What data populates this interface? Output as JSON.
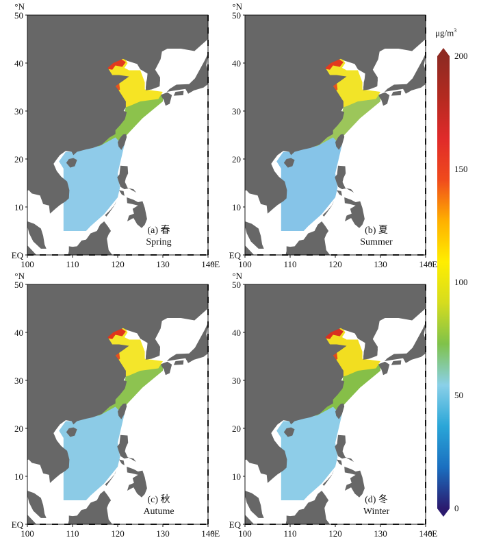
{
  "panels": [
    {
      "id": "a",
      "label": "(a) 春",
      "season": "Spring"
    },
    {
      "id": "b",
      "label": "(b) 夏",
      "season": "Summer"
    },
    {
      "id": "c",
      "label": "(c) 秋",
      "season": "Autume"
    },
    {
      "id": "d",
      "label": "(d) 冬",
      "season": "Winter"
    }
  ],
  "axes": {
    "lat_unit": "°N",
    "lon_unit": "°E",
    "lat_ticks": [
      "50",
      "40",
      "30",
      "20",
      "10",
      "EQ"
    ],
    "lon_ticks": [
      "100",
      "110",
      "120",
      "130",
      "140"
    ],
    "lat_range": [
      0,
      50
    ],
    "lon_range": [
      100,
      140
    ]
  },
  "colorbar": {
    "unit_base": "μg/m",
    "unit_sup": "3",
    "range": [
      0,
      200
    ],
    "ticks": [
      "200",
      "150",
      "100",
      "50",
      "0"
    ],
    "colors": [
      "#2b1a6e",
      "#1a6fc0",
      "#2aa6d8",
      "#8ad0e8",
      "#7fc24a",
      "#d6dc1e",
      "#ffee00",
      "#ffb000",
      "#f04a1c",
      "#e02a2a",
      "#b42a20",
      "#8e2a22"
    ]
  },
  "colors": {
    "land": "#676767",
    "ocean_blank": "#ffffff",
    "low": "#8fcbe9",
    "mid": "#8cc24c",
    "high": "#f6e424",
    "very_high": "#e23a1e"
  }
}
